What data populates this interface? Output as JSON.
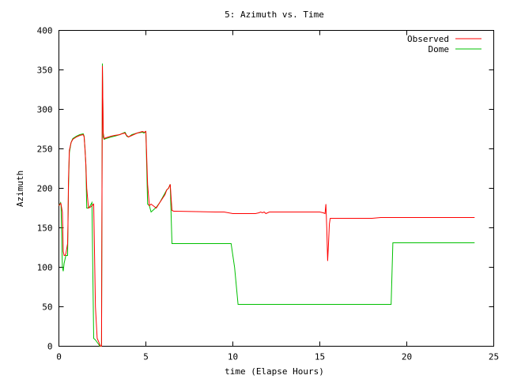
{
  "chart_data": {
    "type": "line",
    "title": "5: Azimuth vs. Time",
    "xlabel": "time (Elapse Hours)",
    "ylabel": "Azimuth",
    "xlim": [
      0,
      25
    ],
    "ylim": [
      0,
      400
    ],
    "xticks": [
      0,
      5,
      10,
      15,
      20,
      25
    ],
    "yticks": [
      0,
      50,
      100,
      150,
      200,
      250,
      300,
      350,
      400
    ],
    "grid": false,
    "legend_position": "top-right",
    "series": [
      {
        "name": "Observed",
        "color": "#ff0000",
        "x": [
          0,
          0.1,
          0.12,
          0.2,
          0.25,
          0.3,
          0.35,
          0.4,
          0.5,
          0.52,
          0.55,
          0.6,
          0.7,
          0.8,
          1.0,
          1.2,
          1.4,
          1.45,
          1.5,
          1.55,
          1.6,
          1.7,
          1.8,
          1.9,
          2.0,
          2.1,
          2.2,
          2.3,
          2.35,
          2.4,
          2.45,
          2.5,
          2.55,
          2.6,
          2.7,
          3.0,
          3.2,
          3.5,
          3.6,
          3.8,
          3.85,
          3.9,
          4.0,
          4.2,
          4.5,
          4.8,
          4.9,
          5.0,
          5.1,
          5.2,
          5.3,
          5.6,
          5.8,
          6.1,
          6.2,
          6.3,
          6.4,
          6.5,
          6.6,
          6.7,
          9.0,
          9.5,
          10.0,
          10.5,
          11.0,
          11.3,
          11.5,
          11.6,
          11.7,
          11.8,
          11.9,
          12.0,
          12.1,
          12.5,
          13.0,
          14.0,
          15.0,
          15.2,
          15.3,
          15.35,
          15.4,
          15.45,
          15.5,
          15.55,
          15.6,
          15.7,
          16.0,
          17.0,
          18.0,
          18.5,
          19.0,
          20.0,
          21.0,
          22.0,
          23.0,
          23.9
        ],
        "y": [
          178,
          181,
          180,
          170,
          120,
          115,
          115,
          117,
          130,
          152,
          210,
          248,
          258,
          262,
          265,
          267,
          268,
          265,
          250,
          230,
          200,
          175,
          176,
          178,
          180,
          50,
          10,
          5,
          2,
          0,
          0,
          355,
          270,
          263,
          264,
          266,
          267,
          268,
          269,
          270,
          268,
          267,
          265,
          267,
          270,
          272,
          271,
          272,
          205,
          178,
          180,
          175,
          182,
          192,
          198,
          200,
          205,
          172,
          171,
          171,
          170,
          170,
          168,
          168,
          168,
          168,
          169,
          170,
          169,
          170,
          168,
          169,
          170,
          170,
          170,
          170,
          170,
          169,
          168,
          180,
          150,
          108,
          130,
          155,
          162,
          162,
          162,
          162,
          162,
          163,
          163,
          163,
          163,
          163,
          163,
          163
        ]
      },
      {
        "name": "Dome",
        "color": "#00c000",
        "x": [
          0,
          0.1,
          0.12,
          0.2,
          0.25,
          0.3,
          0.35,
          0.4,
          0.5,
          0.52,
          0.55,
          0.6,
          0.7,
          0.8,
          1.0,
          1.2,
          1.4,
          1.45,
          1.5,
          1.55,
          1.6,
          1.7,
          1.8,
          1.9,
          2.0,
          2.1,
          2.2,
          2.3,
          2.35,
          2.4,
          2.45,
          2.5,
          2.55,
          2.6,
          2.7,
          3.0,
          3.2,
          3.5,
          3.6,
          3.8,
          3.85,
          3.9,
          4.0,
          4.2,
          4.5,
          4.8,
          4.9,
          5.0,
          5.1,
          5.2,
          5.3,
          5.6,
          5.8,
          6.1,
          6.2,
          6.3,
          6.4,
          6.5,
          9.9,
          10.1,
          10.3,
          12.0,
          15.0,
          18.0,
          19.1,
          19.2,
          22.0,
          23.9
        ],
        "y": [
          178,
          182,
          180,
          100,
          95,
          105,
          110,
          115,
          115,
          150,
          200,
          245,
          258,
          263,
          266,
          268,
          269,
          266,
          250,
          230,
          175,
          175,
          178,
          182,
          10,
          8,
          5,
          2,
          0,
          0,
          0,
          358,
          265,
          262,
          263,
          265,
          266,
          268,
          269,
          271,
          269,
          266,
          265,
          268,
          270,
          271,
          270,
          272,
          180,
          178,
          170,
          176,
          182,
          194,
          198,
          200,
          205,
          130,
          130,
          100,
          53,
          53,
          53,
          53,
          53,
          131,
          131,
          131
        ]
      }
    ]
  }
}
